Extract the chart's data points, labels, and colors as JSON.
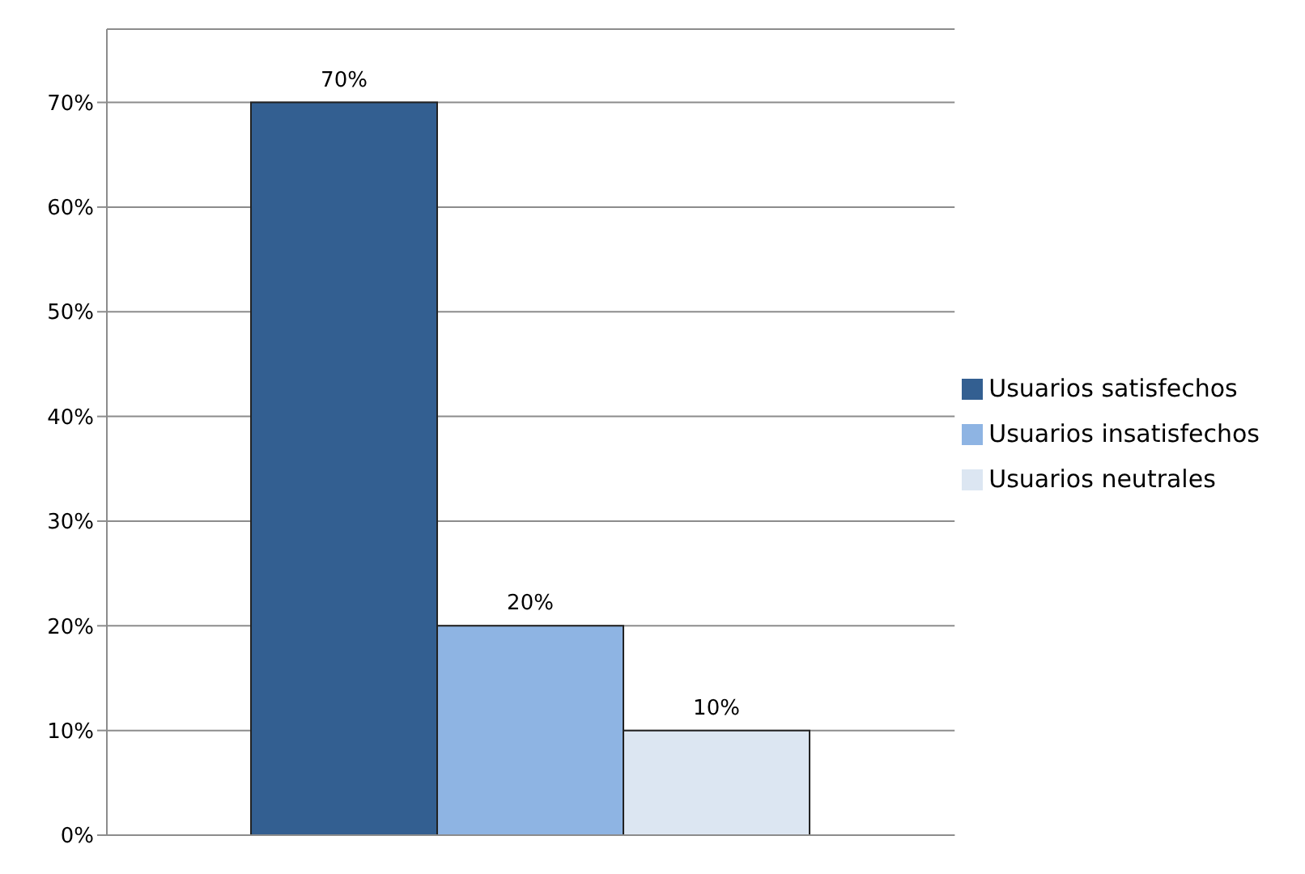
{
  "chart_data": {
    "type": "bar",
    "categories": [
      null
    ],
    "series": [
      {
        "name": "Usuarios satisfechos",
        "color": "#335f91",
        "values": [
          70
        ],
        "value_labels": [
          "70%"
        ]
      },
      {
        "name": "Usuarios insatisfechos",
        "color": "#8eb4e3",
        "values": [
          20
        ],
        "value_labels": [
          "20%"
        ]
      },
      {
        "name": "Usuarios neutrales",
        "color": "#dce6f2",
        "values": [
          10
        ],
        "value_labels": [
          "10%"
        ]
      }
    ],
    "ylim": [
      0,
      77
    ],
    "yticks": [
      {
        "value": 0,
        "label": "0%"
      },
      {
        "value": 10,
        "label": "10%"
      },
      {
        "value": 20,
        "label": "20%"
      },
      {
        "value": 30,
        "label": "30%"
      },
      {
        "value": 40,
        "label": "40%"
      },
      {
        "value": 50,
        "label": "50%"
      },
      {
        "value": 60,
        "label": "60%"
      },
      {
        "value": 70,
        "label": "70%"
      }
    ],
    "grid": "y",
    "legend": "right"
  }
}
